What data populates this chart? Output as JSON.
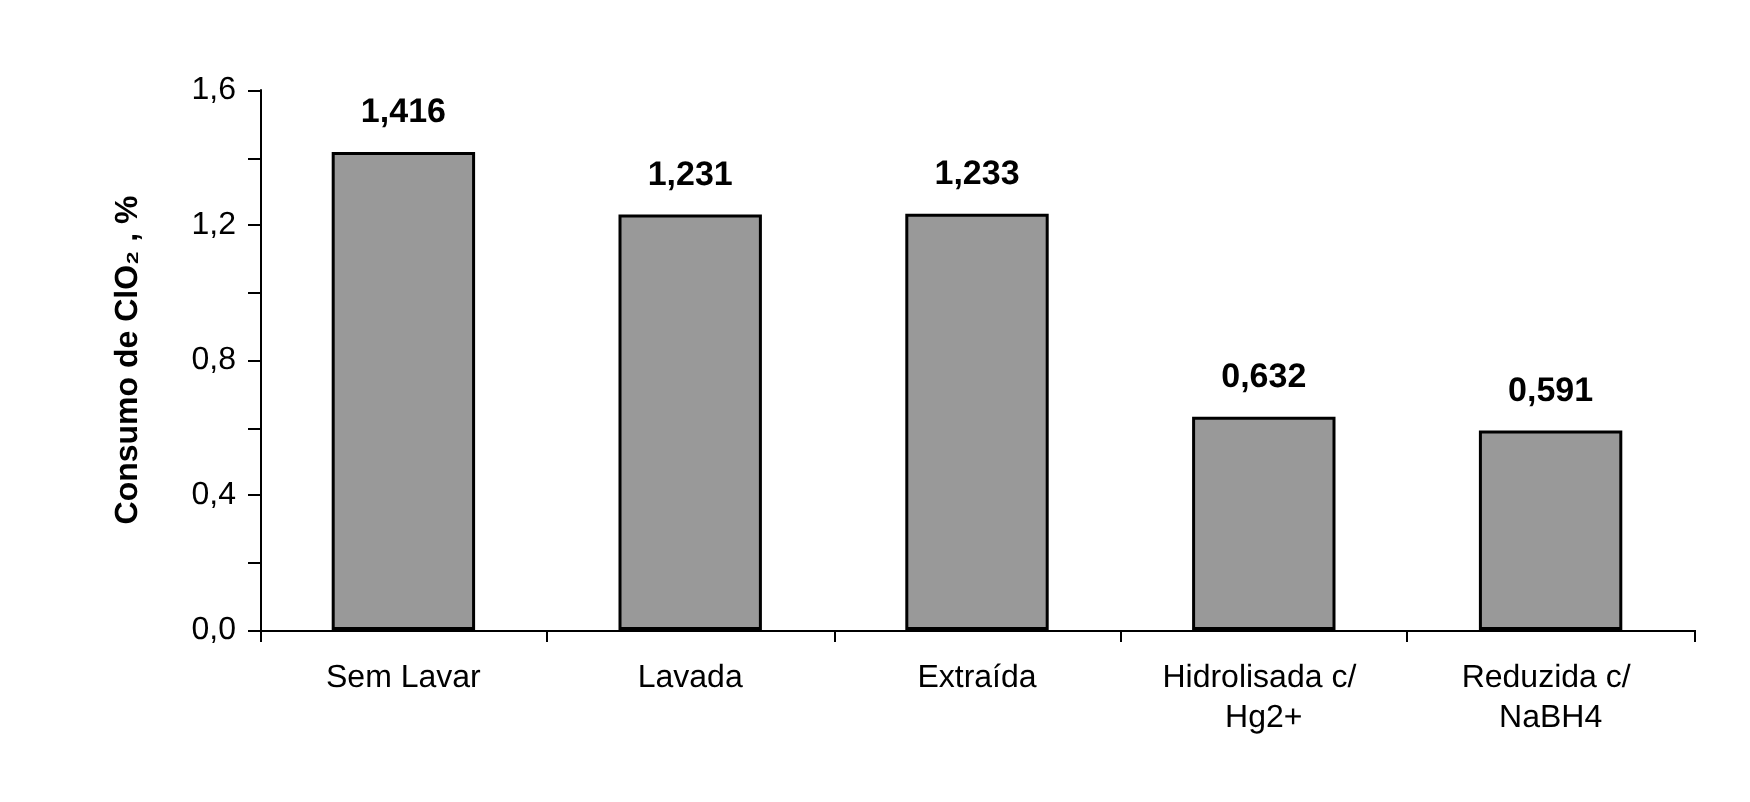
{
  "chart_data": {
    "type": "bar",
    "ylabel": "Consumo de ClO₂ , %",
    "categories": [
      "Sem Lavar",
      "Lavada",
      "Extraída",
      "Hidrolisada c/ Hg2+",
      "Reduzida c/ NaBH4"
    ],
    "values": [
      1.416,
      1.231,
      1.233,
      0.632,
      0.591
    ],
    "value_labels": [
      "1,416",
      "1,231",
      "1,233",
      "0,632",
      "0,591"
    ],
    "color": "#999999",
    "ylim": [
      0,
      1.6
    ],
    "yticks": [
      {
        "value": 0,
        "label": "0,0"
      },
      {
        "value": 0.2,
        "label": null
      },
      {
        "value": 0.4,
        "label": "0,4"
      },
      {
        "value": 0.6,
        "label": null
      },
      {
        "value": 0.8,
        "label": "0,8"
      },
      {
        "value": 1.0,
        "label": null
      },
      {
        "value": 1.2,
        "label": "1,2"
      },
      {
        "value": 1.4,
        "label": null
      },
      {
        "value": 1.6,
        "label": "1,6"
      }
    ],
    "grid": false
  }
}
